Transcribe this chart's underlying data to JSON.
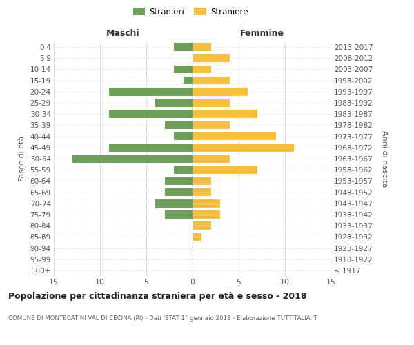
{
  "age_groups": [
    "100+",
    "95-99",
    "90-94",
    "85-89",
    "80-84",
    "75-79",
    "70-74",
    "65-69",
    "60-64",
    "55-59",
    "50-54",
    "45-49",
    "40-44",
    "35-39",
    "30-34",
    "25-29",
    "20-24",
    "15-19",
    "10-14",
    "5-9",
    "0-4"
  ],
  "birth_years": [
    "≤ 1917",
    "1918-1922",
    "1923-1927",
    "1928-1932",
    "1933-1937",
    "1938-1942",
    "1943-1947",
    "1948-1952",
    "1953-1957",
    "1958-1962",
    "1963-1967",
    "1968-1972",
    "1973-1977",
    "1978-1982",
    "1983-1987",
    "1988-1992",
    "1993-1997",
    "1998-2002",
    "2003-2007",
    "2008-2012",
    "2013-2017"
  ],
  "males": [
    0,
    0,
    0,
    0,
    0,
    3,
    4,
    3,
    3,
    2,
    13,
    9,
    2,
    3,
    9,
    4,
    9,
    1,
    2,
    0,
    2
  ],
  "females": [
    0,
    0,
    0,
    1,
    2,
    3,
    3,
    2,
    2,
    7,
    4,
    11,
    9,
    4,
    7,
    4,
    6,
    4,
    2,
    4,
    2
  ],
  "male_color": "#6d9e5a",
  "female_color": "#f5c040",
  "male_label": "Stranieri",
  "female_label": "Straniere",
  "title": "Popolazione per cittadinanza straniera per età e sesso - 2018",
  "subtitle": "COMUNE DI MONTECATINI VAL DI CECINA (PI) - Dati ISTAT 1° gennaio 2018 - Elaborazione TUTTITALIA.IT",
  "xlabel_left": "Maschi",
  "xlabel_right": "Femmine",
  "ylabel": "Fasce di età",
  "ylabel_right": "Anni di nascita",
  "xlim": 15,
  "background_color": "#ffffff",
  "grid_color": "#cccccc"
}
